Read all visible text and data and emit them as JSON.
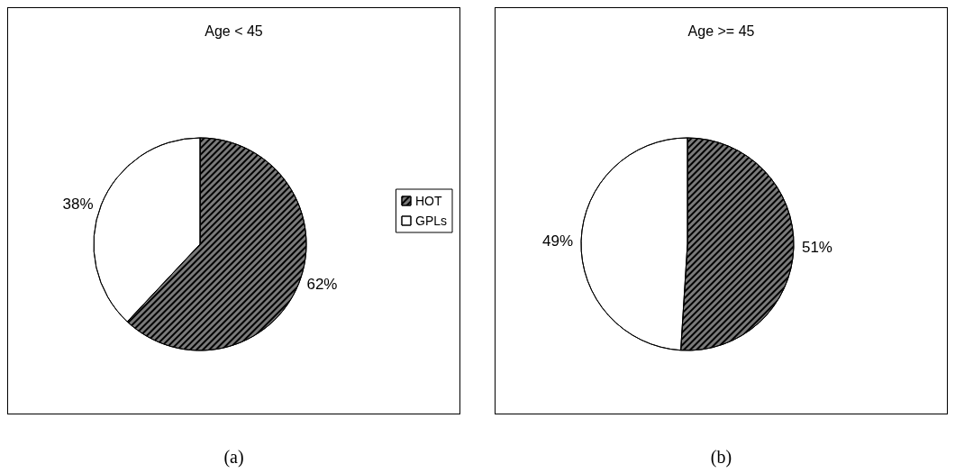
{
  "chart_data": [
    {
      "type": "pie",
      "title": "Age < 45",
      "categories": [
        "HOT",
        "GPLs"
      ],
      "values": [
        62,
        38
      ],
      "value_labels": [
        "62%",
        "38%"
      ],
      "colors": [
        "#7a7a7a",
        "#ffffff"
      ],
      "legend": "right",
      "annotations": [
        "(a)"
      ]
    },
    {
      "type": "pie",
      "title": "Age >= 45",
      "categories": [
        null,
        null
      ],
      "values": [
        51,
        49
      ],
      "value_labels": [
        "51%",
        "49%"
      ],
      "colors": [
        "#7a7a7a",
        "#ffffff"
      ],
      "legend": false,
      "annotations": [
        "(b)"
      ]
    }
  ]
}
